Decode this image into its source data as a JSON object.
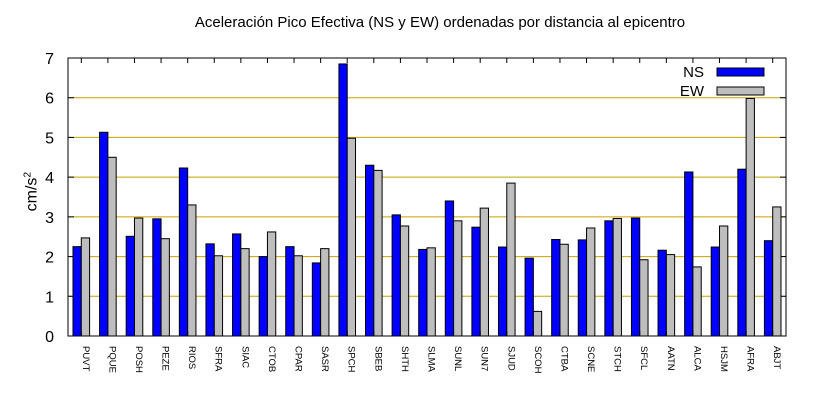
{
  "chart_data": {
    "type": "bar",
    "title": "Aceleración Pico Efectiva (NS y EW) ordenadas por distancia al epicentro",
    "ylabel_base": "cm/s",
    "ylabel_exp": "2",
    "xlabel": "",
    "ylim": [
      0,
      7
    ],
    "yticks": [
      0,
      1,
      2,
      3,
      4,
      5,
      6,
      7
    ],
    "grid": true,
    "legend_position": "top-right",
    "categories": [
      "PUVT",
      "PQUE",
      "POSH",
      "PEZE",
      "RIOS",
      "SFRA",
      "SIAC",
      "CTOB",
      "CPAR",
      "SASR",
      "SPCH",
      "SBEB",
      "SHTH",
      "SLMA",
      "SUNL",
      "SUN7",
      "SJUD",
      "SCOH",
      "CTBA",
      "SCNE",
      "STCH",
      "SFCL",
      "AATN",
      "ALCA",
      "HSJM",
      "AFRA",
      "ABJT"
    ],
    "series": [
      {
        "name": "NS",
        "color": "#0000ff",
        "values": [
          2.25,
          5.13,
          2.51,
          2.95,
          4.23,
          2.32,
          2.57,
          2.0,
          2.25,
          1.84,
          6.85,
          4.3,
          3.05,
          2.18,
          3.4,
          2.74,
          2.24,
          1.96,
          2.43,
          2.42,
          2.9,
          2.97,
          2.16,
          4.13,
          2.24,
          4.2,
          2.4
        ]
      },
      {
        "name": "EW",
        "color": "#bebebe",
        "values": [
          2.47,
          4.5,
          2.97,
          2.45,
          3.3,
          2.02,
          2.2,
          2.62,
          2.02,
          2.2,
          4.98,
          4.17,
          2.77,
          2.22,
          2.9,
          3.22,
          3.85,
          0.62,
          2.31,
          2.72,
          2.96,
          1.92,
          2.05,
          1.74,
          2.77,
          5.98,
          3.25
        ]
      }
    ]
  }
}
